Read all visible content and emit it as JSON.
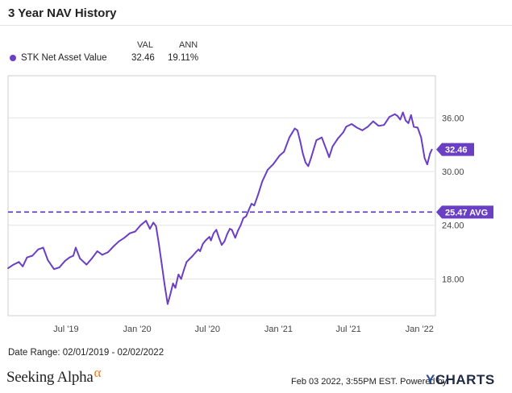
{
  "header": {
    "title": "3 Year NAV History"
  },
  "legend": {
    "col_val": "VAL",
    "col_ann": "ANN",
    "series_name": "STK Net Asset Value",
    "val": "32.46",
    "ann": "19.11%"
  },
  "callouts": {
    "last_value": "32.46",
    "avg_label": "25.47 AVG"
  },
  "footer": {
    "date_range": "Date Range: 02/01/2019 - 02/02/2022",
    "brand": "Seeking Alpha",
    "brand_symbol": "α",
    "stamp": "Feb 03 2022, 3:55PM EST.  Powered by",
    "powered_brand_y": "Y",
    "powered_brand_rest": "CHARTS"
  },
  "colors": {
    "series": "#6a3fc4",
    "avg_line": "#5b34b0",
    "grid": "#e3e3e3"
  },
  "chart_data": {
    "type": "line",
    "title": "3 Year NAV History",
    "xlabel": "",
    "ylabel": "",
    "x_ticks": [
      "Jul '19",
      "Jan '20",
      "Jul '20",
      "Jan '21",
      "Jul '21",
      "Jan '22"
    ],
    "x_tick_dates": [
      "2019-07-01",
      "2020-01-01",
      "2020-07-01",
      "2021-01-01",
      "2021-07-01",
      "2022-01-01"
    ],
    "y_ticks": [
      "18.00",
      "24.00",
      "30.00",
      "36.00"
    ],
    "y_tick_values": [
      18,
      24,
      30,
      36
    ],
    "ylim": [
      13.9,
      40.7
    ],
    "xlim": [
      "2019-02-01",
      "2022-02-11"
    ],
    "grid": true,
    "legend": "top-left",
    "average": 25.47,
    "last_value": 32.46,
    "series": [
      {
        "name": "STK Net Asset Value",
        "x": [
          "2019-02-01",
          "2019-02-15",
          "2019-03-01",
          "2019-03-11",
          "2019-03-22",
          "2019-04-05",
          "2019-04-20",
          "2019-05-03",
          "2019-05-15",
          "2019-05-31",
          "2019-06-14",
          "2019-06-28",
          "2019-07-10",
          "2019-07-20",
          "2019-07-26",
          "2019-08-06",
          "2019-08-23",
          "2019-09-06",
          "2019-09-20",
          "2019-10-03",
          "2019-10-18",
          "2019-10-31",
          "2019-11-15",
          "2019-11-29",
          "2019-12-13",
          "2019-12-27",
          "2020-01-10",
          "2020-01-24",
          "2020-02-03",
          "2020-02-12",
          "2020-02-19",
          "2020-02-26",
          "2020-03-05",
          "2020-03-12",
          "2020-03-20",
          "2020-03-27",
          "2020-04-03",
          "2020-04-09",
          "2020-04-17",
          "2020-04-24",
          "2020-05-01",
          "2020-05-08",
          "2020-05-15",
          "2020-05-22",
          "2020-06-01",
          "2020-06-08",
          "2020-06-12",
          "2020-06-19",
          "2020-06-26",
          "2020-07-06",
          "2020-07-10",
          "2020-07-17",
          "2020-07-24",
          "2020-07-31",
          "2020-08-07",
          "2020-08-14",
          "2020-08-21",
          "2020-08-28",
          "2020-09-02",
          "2020-09-11",
          "2020-09-18",
          "2020-09-25",
          "2020-10-02",
          "2020-10-09",
          "2020-10-16",
          "2020-10-23",
          "2020-10-30",
          "2020-11-09",
          "2020-11-20",
          "2020-12-04",
          "2020-12-18",
          "2021-01-04",
          "2021-01-15",
          "2021-01-29",
          "2021-02-05",
          "2021-02-12",
          "2021-02-19",
          "2021-02-26",
          "2021-03-05",
          "2021-03-12",
          "2021-03-19",
          "2021-03-26",
          "2021-04-09",
          "2021-04-23",
          "2021-05-07",
          "2021-05-12",
          "2021-05-21",
          "2021-06-04",
          "2021-06-18",
          "2021-06-25",
          "2021-07-09",
          "2021-07-23",
          "2021-08-06",
          "2021-08-20",
          "2021-09-03",
          "2021-09-17",
          "2021-10-01",
          "2021-10-15",
          "2021-10-29",
          "2021-11-05",
          "2021-11-12",
          "2021-11-19",
          "2021-11-26",
          "2021-12-03",
          "2021-12-10",
          "2021-12-17",
          "2021-12-27",
          "2022-01-05",
          "2022-01-14",
          "2022-01-21",
          "2022-01-28",
          "2022-02-02"
        ],
        "values": [
          19.2,
          19.6,
          19.9,
          19.4,
          20.4,
          20.6,
          21.3,
          21.5,
          20.1,
          19.1,
          19.3,
          20.0,
          20.4,
          20.6,
          21.5,
          20.3,
          19.6,
          20.3,
          21.1,
          20.7,
          21.0,
          21.6,
          22.2,
          22.6,
          23.1,
          23.3,
          24.0,
          24.5,
          23.6,
          24.3,
          23.9,
          22.0,
          19.6,
          17.4,
          15.2,
          16.3,
          17.5,
          17.0,
          18.5,
          18.0,
          19.0,
          19.9,
          20.2,
          20.5,
          21.0,
          21.3,
          21.1,
          21.9,
          22.3,
          22.7,
          22.3,
          23.1,
          23.5,
          22.6,
          21.8,
          22.2,
          23.0,
          23.6,
          23.5,
          22.6,
          23.4,
          24.0,
          24.8,
          25.0,
          25.7,
          26.4,
          26.2,
          27.4,
          28.9,
          30.2,
          30.8,
          31.8,
          32.2,
          33.8,
          34.3,
          34.8,
          34.6,
          33.4,
          32.0,
          31.0,
          30.6,
          31.5,
          33.5,
          33.8,
          32.2,
          31.6,
          32.8,
          33.7,
          34.4,
          35.0,
          35.3,
          34.9,
          34.6,
          35.0,
          35.6,
          35.1,
          35.2,
          36.1,
          36.4,
          36.2,
          35.8,
          36.6,
          35.7,
          35.4,
          36.3,
          35.0,
          34.9,
          33.8,
          31.5,
          30.8,
          32.0,
          32.46
        ]
      }
    ]
  }
}
